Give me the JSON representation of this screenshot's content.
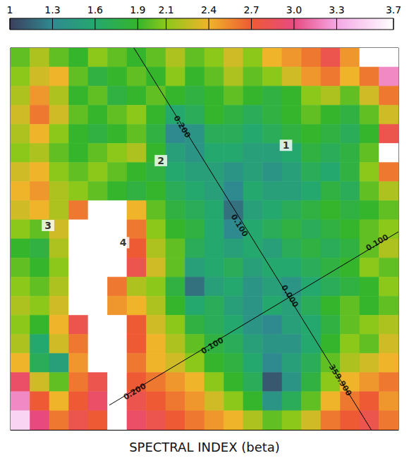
{
  "chart_data": {
    "type": "heatmap",
    "title": "SPECTRAL INDEX (beta)",
    "xlim": [
      0,
      20
    ],
    "ylim": [
      0,
      20
    ],
    "tick_labels": false,
    "grid": false,
    "colorbar": {
      "range": [
        1,
        3.7
      ],
      "ticks": [
        1,
        1.3,
        1.6,
        1.9,
        2.1,
        2.4,
        2.7,
        {
          "value": 3,
          "label": "3.0"
        },
        3.3,
        3.7
      ]
    },
    "cells": [
      [
        2.0,
        2.2,
        2.0,
        1.9,
        2.1,
        2.0,
        1.9,
        2.0,
        2.2,
        2.0,
        2.1,
        2.3,
        2.1,
        2.4,
        2.5,
        2.6,
        2.8,
        2.5,
        3.7,
        3.7
      ],
      [
        2.1,
        2.3,
        2.4,
        2.0,
        1.8,
        1.9,
        2.0,
        1.9,
        2.1,
        1.9,
        2.0,
        2.2,
        2.0,
        2.1,
        2.3,
        2.5,
        2.6,
        2.4,
        2.6,
        3.2
      ],
      [
        2.2,
        2.5,
        2.2,
        1.9,
        2.0,
        1.8,
        1.9,
        2.0,
        1.9,
        1.8,
        1.9,
        2.0,
        1.9,
        1.8,
        1.9,
        2.1,
        2.2,
        2.0,
        2.3,
        2.6
      ],
      [
        2.3,
        2.6,
        2.3,
        2.0,
        1.9,
        2.0,
        2.1,
        1.9,
        1.6,
        1.7,
        1.9,
        1.8,
        1.7,
        1.8,
        1.9,
        2.0,
        1.9,
        1.8,
        2.0,
        2.3
      ],
      [
        2.2,
        2.4,
        2.1,
        1.9,
        1.8,
        1.9,
        2.0,
        1.8,
        1.3,
        1.4,
        1.7,
        1.7,
        1.6,
        1.7,
        1.8,
        1.9,
        1.8,
        1.7,
        1.9,
        2.8
      ],
      [
        2.1,
        2.2,
        2.0,
        1.9,
        2.0,
        2.1,
        2.2,
        1.9,
        1.5,
        1.4,
        1.6,
        1.6,
        1.5,
        1.5,
        1.6,
        1.8,
        1.7,
        1.8,
        2.0,
        3.7
      ],
      [
        2.3,
        2.4,
        2.1,
        2.0,
        2.1,
        2.0,
        1.9,
        1.8,
        1.6,
        1.5,
        1.5,
        1.4,
        1.5,
        1.4,
        1.5,
        1.7,
        1.6,
        1.8,
        2.1,
        2.6
      ],
      [
        2.4,
        2.5,
        2.2,
        2.1,
        2.0,
        1.9,
        1.8,
        1.9,
        1.7,
        1.6,
        1.5,
        1.3,
        1.6,
        1.5,
        1.5,
        1.6,
        1.8,
        1.7,
        2.0,
        2.2
      ],
      [
        2.3,
        2.4,
        2.2,
        2.6,
        3.7,
        3.7,
        2.4,
        2.0,
        1.8,
        1.7,
        1.6,
        1.2,
        1.5,
        1.6,
        1.7,
        1.8,
        1.9,
        1.8,
        1.9,
        2.0
      ],
      [
        2.1,
        2.0,
        2.3,
        3.7,
        3.7,
        3.7,
        2.6,
        2.1,
        1.9,
        1.8,
        1.6,
        1.3,
        1.6,
        1.7,
        1.8,
        1.7,
        1.8,
        1.9,
        2.0,
        2.1
      ],
      [
        1.9,
        1.8,
        2.2,
        3.7,
        3.7,
        3.7,
        2.7,
        2.2,
        2.0,
        1.7,
        1.6,
        1.5,
        1.6,
        1.5,
        1.7,
        1.8,
        1.7,
        1.8,
        2.0,
        2.2
      ],
      [
        2.0,
        1.9,
        2.1,
        3.7,
        3.7,
        3.7,
        2.8,
        2.3,
        2.0,
        1.5,
        1.6,
        1.7,
        1.5,
        1.6,
        1.6,
        1.7,
        1.8,
        1.9,
        2.1,
        2.0
      ],
      [
        2.1,
        2.0,
        2.2,
        3.7,
        3.7,
        2.6,
        2.2,
        2.1,
        1.8,
        1.2,
        1.5,
        1.6,
        1.4,
        1.5,
        1.4,
        1.6,
        1.7,
        1.8,
        1.9,
        2.1
      ],
      [
        2.2,
        2.1,
        2.3,
        3.7,
        3.7,
        2.5,
        2.4,
        2.2,
        1.9,
        1.6,
        1.7,
        1.5,
        1.4,
        1.6,
        1.5,
        1.7,
        1.9,
        2.0,
        1.9,
        2.0
      ],
      [
        2.1,
        1.9,
        2.4,
        2.8,
        3.7,
        3.7,
        2.7,
        2.3,
        2.1,
        1.8,
        1.7,
        1.6,
        1.4,
        1.3,
        1.5,
        1.6,
        1.8,
        2.0,
        2.1,
        2.2
      ],
      [
        2.2,
        1.6,
        2.3,
        2.6,
        3.7,
        3.7,
        2.7,
        2.4,
        2.2,
        2.0,
        1.8,
        1.7,
        1.5,
        1.4,
        1.4,
        1.6,
        1.9,
        2.1,
        2.0,
        2.3
      ],
      [
        2.4,
        1.7,
        1.5,
        2.5,
        3.7,
        3.7,
        2.6,
        2.4,
        2.3,
        2.1,
        1.9,
        1.8,
        1.6,
        1.3,
        1.5,
        1.7,
        2.0,
        2.2,
        2.3,
        2.4
      ],
      [
        2.9,
        2.3,
        2.0,
        2.6,
        2.8,
        3.7,
        2.7,
        2.6,
        2.5,
        2.4,
        2.1,
        1.9,
        1.7,
        1.1,
        1.4,
        1.8,
        2.1,
        2.4,
        2.5,
        2.6
      ],
      [
        3.2,
        2.7,
        2.4,
        2.7,
        2.9,
        3.7,
        2.8,
        2.7,
        2.6,
        2.5,
        2.3,
        2.1,
        1.9,
        1.4,
        1.7,
        2.0,
        2.4,
        2.6,
        2.7,
        2.5
      ],
      [
        3.5,
        3.0,
        2.6,
        2.8,
        2.7,
        3.7,
        2.9,
        2.8,
        2.7,
        2.6,
        2.5,
        2.4,
        2.2,
        2.0,
        2.1,
        2.3,
        2.6,
        2.7,
        2.8,
        2.6
      ]
    ],
    "coordinate_lines": [
      {
        "points": [
          [
            6.36,
            20
          ],
          [
            18.6,
            0
          ]
        ],
        "labels": [
          {
            "text": "0.200",
            "x": 8.84,
            "y": 15.87
          },
          {
            "text": "0.100",
            "x": 11.8,
            "y": 10.7
          },
          {
            "text": "0.000",
            "x": 14.4,
            "y": 7.0
          },
          {
            "text": "359.900",
            "x": 17.0,
            "y": 2.6
          }
        ]
      },
      {
        "points": [
          [
            5.09,
            1.29
          ],
          [
            20,
            10.37
          ]
        ],
        "labels": [
          {
            "text": "0.200",
            "x": 6.4,
            "y": 2.0
          },
          {
            "text": "0.100",
            "x": 10.4,
            "y": 4.4
          },
          {
            "text": "0.100",
            "x": 18.9,
            "y": 9.8
          }
        ]
      }
    ],
    "annotations": [
      {
        "text": "1",
        "x": 14.2,
        "y": 14.9
      },
      {
        "text": "2",
        "x": 7.75,
        "y": 14.1
      },
      {
        "text": "3",
        "x": 1.93,
        "y": 10.7
      },
      {
        "text": "4",
        "x": 5.8,
        "y": 9.8
      }
    ]
  }
}
